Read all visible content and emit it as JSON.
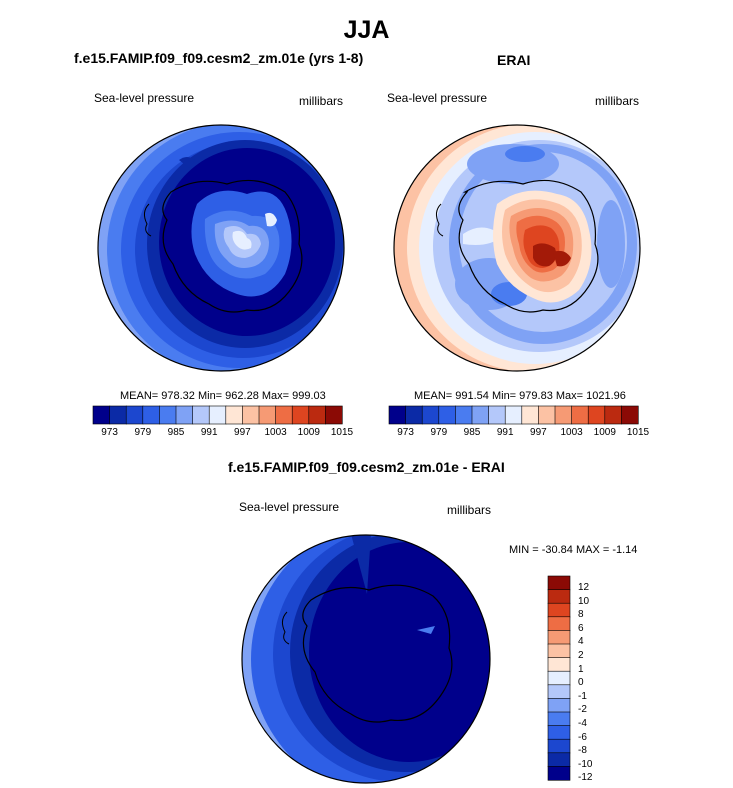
{
  "page": {
    "title": "JJA",
    "panels": [
      {
        "title": "f.e15.FAMIP.f09_f09.cesm2_zm.01e (yrs 1-8)",
        "variable": "Sea-level pressure",
        "units": "millibars",
        "stats": "MEAN= 978.32  Min= 962.28  Max= 999.03"
      },
      {
        "title": "ERAI",
        "variable": "Sea-level pressure",
        "units": "millibars",
        "stats": "MEAN= 991.54  Min= 979.83  Max= 1021.96"
      },
      {
        "title": "f.e15.FAMIP.f09_f09.cesm2_zm.01e - ERAI",
        "variable": "Sea-level pressure",
        "units": "millibars",
        "stats": "MIN = -30.84 MAX =  -1.14"
      }
    ],
    "abs_colorbar": {
      "colors": [
        "#00008b",
        "#0b2aa6",
        "#1c47cf",
        "#2e5fe6",
        "#4a7cf0",
        "#7fa2f5",
        "#b4c8fa",
        "#e6efff",
        "#ffe6d5",
        "#fcc2a4",
        "#f69a74",
        "#ee6d44",
        "#de4520",
        "#bb2a10",
        "#8b0a05"
      ],
      "labels": [
        "973",
        "979",
        "985",
        "991",
        "997",
        "1003",
        "1009",
        "1015"
      ]
    },
    "diff_colorbar": {
      "colors": [
        "#00008b",
        "#0b2aa6",
        "#1c47cf",
        "#2e5fe6",
        "#4a7cf0",
        "#7fa2f5",
        "#b4c8fa",
        "#e6efff",
        "#ffe6d5",
        "#fcc2a4",
        "#f69a74",
        "#ee6d44",
        "#de4520",
        "#bb2a10",
        "#8b0a05"
      ],
      "labels": [
        "12",
        "10",
        "8",
        "6",
        "4",
        "2",
        "1",
        "0",
        "-1",
        "-2",
        "-4",
        "-6",
        "-8",
        "-10",
        "-12"
      ]
    },
    "colors": {
      "deep_blue": "#00008b",
      "mid_blue": "#2e5fe6",
      "light_blue": "#7fa2f5",
      "pale_blue": "#b4c8fa",
      "pale_orange": "#fcc2a4",
      "red": "#de4520",
      "dark_red": "#a31a08"
    }
  }
}
